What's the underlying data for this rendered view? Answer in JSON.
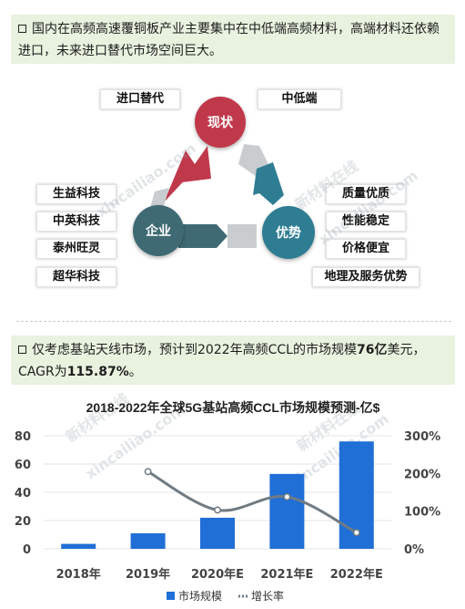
{
  "callout1": {
    "text": "国内在高频高速覆铜板产业主要集中在中低端高频材料，高端材料还依赖进口，未来进口替代市场空间巨大。"
  },
  "diagram": {
    "nodes": {
      "top": "现状",
      "left": "企业",
      "right": "优势"
    },
    "top_tags": [
      "进口替代",
      "中低端"
    ],
    "left_tags": [
      "生益科技",
      "中英科技",
      "泰州旺灵",
      "超华科技"
    ],
    "right_tags": [
      "质量优质",
      "性能稳定",
      "价格便宜",
      "地理及服务优势"
    ],
    "colors": {
      "top": "#c0394b",
      "left": "#3f6a73",
      "right": "#2e7d93",
      "arrow_gray": "#c9cdd0"
    }
  },
  "watermarks": [
    "新材料在线",
    "xincailiao.com"
  ],
  "callout2": {
    "pre": "仅考虑基站天线市场，预计到2022年高频CCL的市场规模",
    "bold1": "76亿",
    "mid": "美元，CAGR为",
    "bold2": "115.87%",
    "post": "。"
  },
  "chart_data": {
    "type": "bar",
    "title": "2018-2022年全球5G基站高频CCL市场规模预测-亿$",
    "categories": [
      "2018年",
      "2019年",
      "2020年E",
      "2021年E",
      "2022年E"
    ],
    "series": [
      {
        "name": "市场规模",
        "type": "bar",
        "axis": "left",
        "values": [
          3.5,
          11,
          22,
          53,
          76
        ]
      },
      {
        "name": "增长率",
        "type": "line",
        "axis": "right",
        "values": [
          null,
          205,
          103,
          138,
          43
        ]
      }
    ],
    "y_left": {
      "ticks": [
        0,
        20,
        40,
        60,
        80
      ],
      "lim": [
        0,
        80
      ]
    },
    "y_right": {
      "ticks": [
        "0%",
        "100%",
        "200%",
        "300%"
      ],
      "lim": [
        0,
        300
      ]
    },
    "legend_position": "bottom",
    "colors": {
      "bar": "#1f6fd6",
      "line": "#707b83",
      "marker": "#ffffff"
    }
  }
}
